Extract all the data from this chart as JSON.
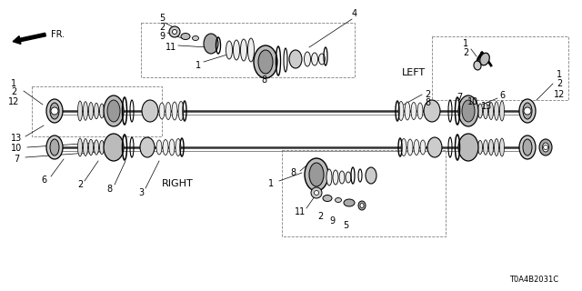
{
  "bg_color": "#ffffff",
  "diagram_code": "T0A4B2031C",
  "left_label": "LEFT",
  "right_label": "RIGHT",
  "fr_label": "FR.",
  "line_color": "#000000",
  "part_color": "#555555",
  "light_gray": "#888888",
  "dashed_color": "#aaaaaa"
}
